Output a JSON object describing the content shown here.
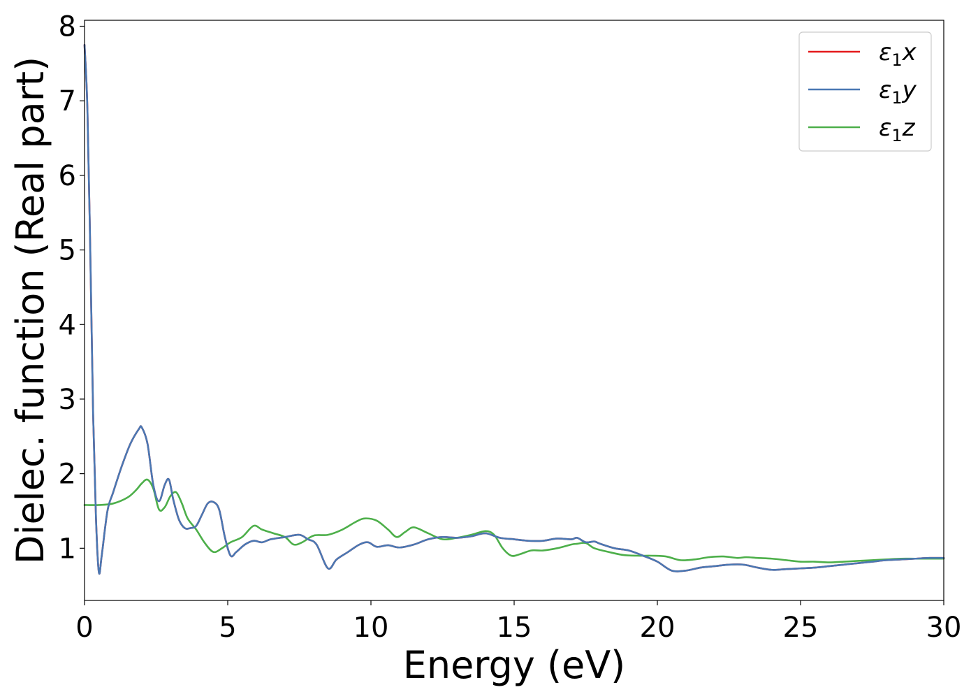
{
  "chart_data": {
    "type": "line",
    "xlabel": "Energy (eV)",
    "ylabel": "Dielec. function (Real part)",
    "xlim": [
      0,
      30
    ],
    "ylim": [
      0.3,
      8.08
    ],
    "xticks": [
      0,
      5,
      10,
      15,
      20,
      25,
      30
    ],
    "yticks": [
      1,
      2,
      3,
      4,
      5,
      6,
      7,
      8
    ],
    "grid": false,
    "legend_position": "top-right",
    "series": [
      {
        "name": "ε₁x",
        "legend_base": "ε",
        "legend_sub": "1",
        "legend_suffix": "x",
        "color": "#e41a1c",
        "x": [
          0,
          0.1,
          0.2,
          0.3,
          0.4,
          0.5,
          0.6,
          0.8,
          1.0,
          1.3,
          1.6,
          1.9,
          2.0,
          2.2,
          2.4,
          2.6,
          2.8,
          2.95,
          3.1,
          3.3,
          3.5,
          3.7,
          3.9,
          4.1,
          4.3,
          4.5,
          4.7,
          4.9,
          5.1,
          5.3,
          5.6,
          5.9,
          6.2,
          6.5,
          7.0,
          7.5,
          7.8,
          8.1,
          8.5,
          8.8,
          9.2,
          9.6,
          9.9,
          10.2,
          10.6,
          11.0,
          11.5,
          12.0,
          12.5,
          13.0,
          13.5,
          14.0,
          14.5,
          15.0,
          15.5,
          16.0,
          16.5,
          17.0,
          17.2,
          17.5,
          17.8,
          18.0,
          18.5,
          19.0,
          19.5,
          20.0,
          20.5,
          21.0,
          21.5,
          22.0,
          22.5,
          23.0,
          23.5,
          24.0,
          24.5,
          25.0,
          25.5,
          26.0,
          26.5,
          27.0,
          27.5,
          28.0,
          28.5,
          29.0,
          29.5,
          30.0
        ],
        "y": [
          7.75,
          6.9,
          5.0,
          2.8,
          1.4,
          0.68,
          0.9,
          1.5,
          1.75,
          2.1,
          2.4,
          2.6,
          2.62,
          2.4,
          1.85,
          1.63,
          1.85,
          1.92,
          1.65,
          1.38,
          1.27,
          1.27,
          1.3,
          1.45,
          1.6,
          1.62,
          1.52,
          1.15,
          0.9,
          0.95,
          1.05,
          1.1,
          1.08,
          1.12,
          1.15,
          1.18,
          1.12,
          1.05,
          0.73,
          0.85,
          0.95,
          1.05,
          1.08,
          1.02,
          1.04,
          1.01,
          1.05,
          1.12,
          1.15,
          1.14,
          1.16,
          1.2,
          1.14,
          1.12,
          1.1,
          1.1,
          1.13,
          1.12,
          1.14,
          1.08,
          1.09,
          1.06,
          1.0,
          0.97,
          0.9,
          0.82,
          0.7,
          0.7,
          0.74,
          0.76,
          0.78,
          0.78,
          0.74,
          0.71,
          0.72,
          0.73,
          0.74,
          0.76,
          0.78,
          0.8,
          0.82,
          0.84,
          0.85,
          0.86,
          0.87,
          0.87
        ]
      },
      {
        "name": "ε₁y",
        "legend_base": "ε",
        "legend_sub": "1",
        "legend_suffix": "y",
        "color": "#4a78b3",
        "x": [
          0,
          0.1,
          0.2,
          0.3,
          0.4,
          0.5,
          0.6,
          0.8,
          1.0,
          1.3,
          1.6,
          1.9,
          2.0,
          2.2,
          2.4,
          2.6,
          2.8,
          2.95,
          3.1,
          3.3,
          3.5,
          3.7,
          3.9,
          4.1,
          4.3,
          4.5,
          4.7,
          4.9,
          5.1,
          5.3,
          5.6,
          5.9,
          6.2,
          6.5,
          7.0,
          7.5,
          7.8,
          8.1,
          8.5,
          8.8,
          9.2,
          9.6,
          9.9,
          10.2,
          10.6,
          11.0,
          11.5,
          12.0,
          12.5,
          13.0,
          13.5,
          14.0,
          14.5,
          15.0,
          15.5,
          16.0,
          16.5,
          17.0,
          17.2,
          17.5,
          17.8,
          18.0,
          18.5,
          19.0,
          19.5,
          20.0,
          20.5,
          21.0,
          21.5,
          22.0,
          22.5,
          23.0,
          23.5,
          24.0,
          24.5,
          25.0,
          25.5,
          26.0,
          26.5,
          27.0,
          27.5,
          28.0,
          28.5,
          29.0,
          29.5,
          30.0
        ],
        "y": [
          7.75,
          6.9,
          5.0,
          2.8,
          1.4,
          0.68,
          0.9,
          1.5,
          1.75,
          2.1,
          2.4,
          2.6,
          2.62,
          2.4,
          1.85,
          1.63,
          1.85,
          1.92,
          1.65,
          1.38,
          1.27,
          1.27,
          1.3,
          1.45,
          1.6,
          1.62,
          1.52,
          1.15,
          0.9,
          0.95,
          1.05,
          1.1,
          1.08,
          1.12,
          1.15,
          1.18,
          1.12,
          1.05,
          0.73,
          0.85,
          0.95,
          1.05,
          1.08,
          1.02,
          1.04,
          1.01,
          1.05,
          1.12,
          1.15,
          1.14,
          1.16,
          1.2,
          1.14,
          1.12,
          1.1,
          1.1,
          1.13,
          1.12,
          1.14,
          1.08,
          1.09,
          1.06,
          1.0,
          0.97,
          0.9,
          0.82,
          0.7,
          0.7,
          0.74,
          0.76,
          0.78,
          0.78,
          0.74,
          0.71,
          0.72,
          0.73,
          0.74,
          0.76,
          0.78,
          0.8,
          0.82,
          0.84,
          0.85,
          0.86,
          0.87,
          0.87
        ]
      },
      {
        "name": "ε₁z",
        "legend_base": "ε",
        "legend_sub": "1",
        "legend_suffix": "z",
        "color": "#4daf4a",
        "x": [
          0,
          0.5,
          1.0,
          1.5,
          1.8,
          2.0,
          2.2,
          2.4,
          2.6,
          2.8,
          3.0,
          3.2,
          3.4,
          3.6,
          3.9,
          4.2,
          4.5,
          4.8,
          5.1,
          5.5,
          5.9,
          6.2,
          6.6,
          7.0,
          7.3,
          7.6,
          8.0,
          8.5,
          9.0,
          9.5,
          9.8,
          10.2,
          10.6,
          10.9,
          11.2,
          11.5,
          12.0,
          12.5,
          13.0,
          13.5,
          14.0,
          14.3,
          14.6,
          14.9,
          15.2,
          15.6,
          16.0,
          16.5,
          17.0,
          17.2,
          17.5,
          17.8,
          18.3,
          18.8,
          19.3,
          19.8,
          20.3,
          20.8,
          21.3,
          21.8,
          22.3,
          22.8,
          23.1,
          23.5,
          24.0,
          24.5,
          25.0,
          25.5,
          26.0,
          26.5,
          27.0,
          27.5,
          28.0,
          28.5,
          29.0,
          29.5,
          30.0
        ],
        "y": [
          1.58,
          1.58,
          1.6,
          1.68,
          1.78,
          1.87,
          1.92,
          1.8,
          1.52,
          1.55,
          1.7,
          1.75,
          1.6,
          1.4,
          1.25,
          1.07,
          0.95,
          1.0,
          1.08,
          1.15,
          1.3,
          1.25,
          1.2,
          1.15,
          1.05,
          1.08,
          1.17,
          1.18,
          1.25,
          1.36,
          1.4,
          1.37,
          1.25,
          1.15,
          1.22,
          1.28,
          1.2,
          1.12,
          1.14,
          1.18,
          1.23,
          1.18,
          1.0,
          0.9,
          0.92,
          0.97,
          0.97,
          1.0,
          1.05,
          1.06,
          1.07,
          1.0,
          0.95,
          0.91,
          0.9,
          0.9,
          0.89,
          0.84,
          0.85,
          0.88,
          0.89,
          0.87,
          0.88,
          0.87,
          0.86,
          0.84,
          0.82,
          0.82,
          0.81,
          0.82,
          0.83,
          0.84,
          0.85,
          0.86,
          0.86,
          0.86,
          0.86
        ]
      }
    ]
  }
}
